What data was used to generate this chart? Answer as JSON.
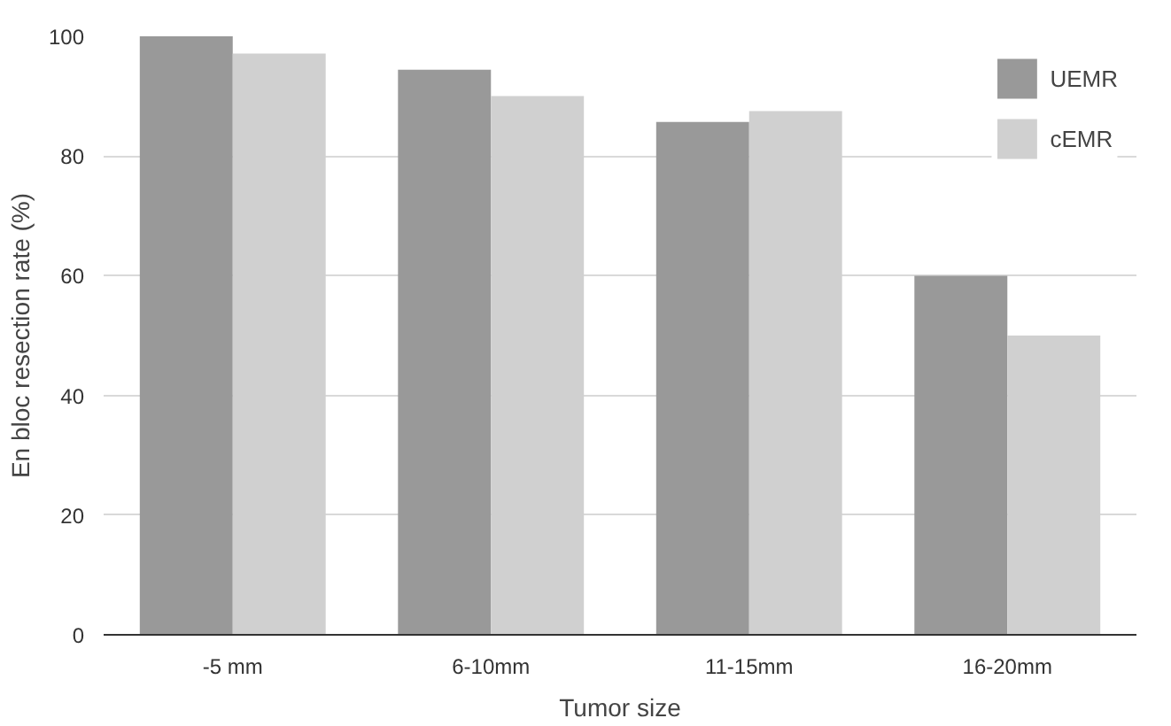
{
  "chart_data": {
    "type": "bar",
    "xlabel": "Tumor size",
    "ylabel": "En bloc resection rate (%)",
    "categories": [
      "-5 mm",
      "6-10mm",
      "11-15mm",
      "16-20mm"
    ],
    "series": [
      {
        "name": "UEMR",
        "color": "#999999",
        "values": [
          100,
          94.4,
          85.7,
          60
        ]
      },
      {
        "name": "cEMR",
        "color": "#d0d0d0",
        "values": [
          97.1,
          90,
          87.5,
          50
        ]
      }
    ],
    "ylim": [
      0,
      100
    ],
    "yticks": [
      0,
      20,
      40,
      60,
      80,
      100
    ],
    "grid": "y",
    "legend": "top right"
  }
}
